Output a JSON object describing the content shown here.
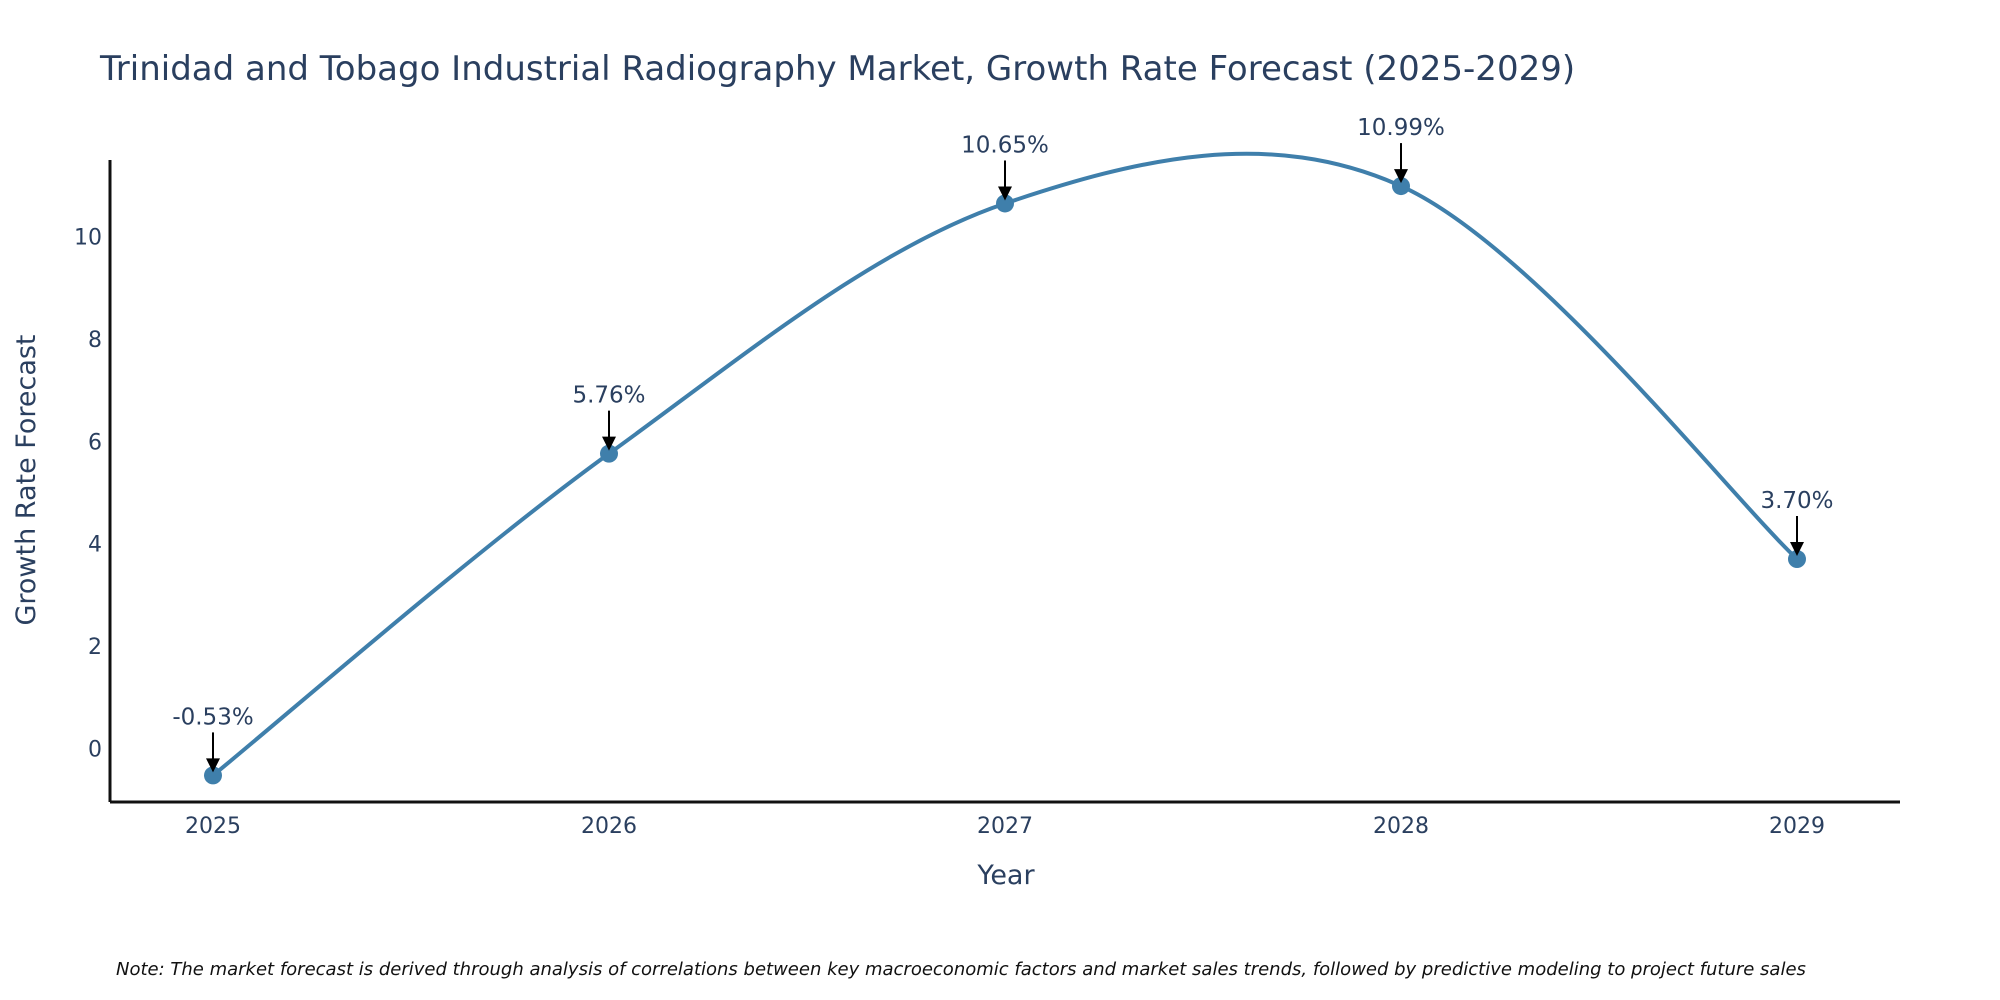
{
  "chart_data": {
    "type": "line",
    "title": "Trinidad and Tobago Industrial Radiography Market, Growth Rate Forecast (2025-2029)",
    "xlabel": "Year",
    "ylabel": "Growth Rate Forecast",
    "categories": [
      "2025",
      "2026",
      "2027",
      "2028",
      "2029"
    ],
    "series": [
      {
        "name": "Growth Rate Forecast",
        "values": [
          -0.53,
          5.76,
          10.65,
          10.99,
          3.7
        ],
        "labels": [
          "-0.53%",
          "5.76%",
          "10.65%",
          "10.99%",
          "3.70%"
        ]
      }
    ],
    "ylim": [
      -1.05,
      11.5
    ],
    "yticks": [
      0,
      2,
      4,
      6,
      8,
      10
    ],
    "ytick_labels": [
      "0",
      "2",
      "4",
      "6",
      "8",
      "10"
    ],
    "grid": false,
    "line_shape": "spline",
    "colors": {
      "line": "#3f7fab",
      "marker": "#3f7fab",
      "axis": "#111111",
      "arrow": "#000000",
      "text": "#2a3f5f"
    },
    "note": "Note: The market forecast is derived through analysis of correlations between key macroeconomic factors and market sales trends, followed by predictive modeling to project future sales"
  }
}
